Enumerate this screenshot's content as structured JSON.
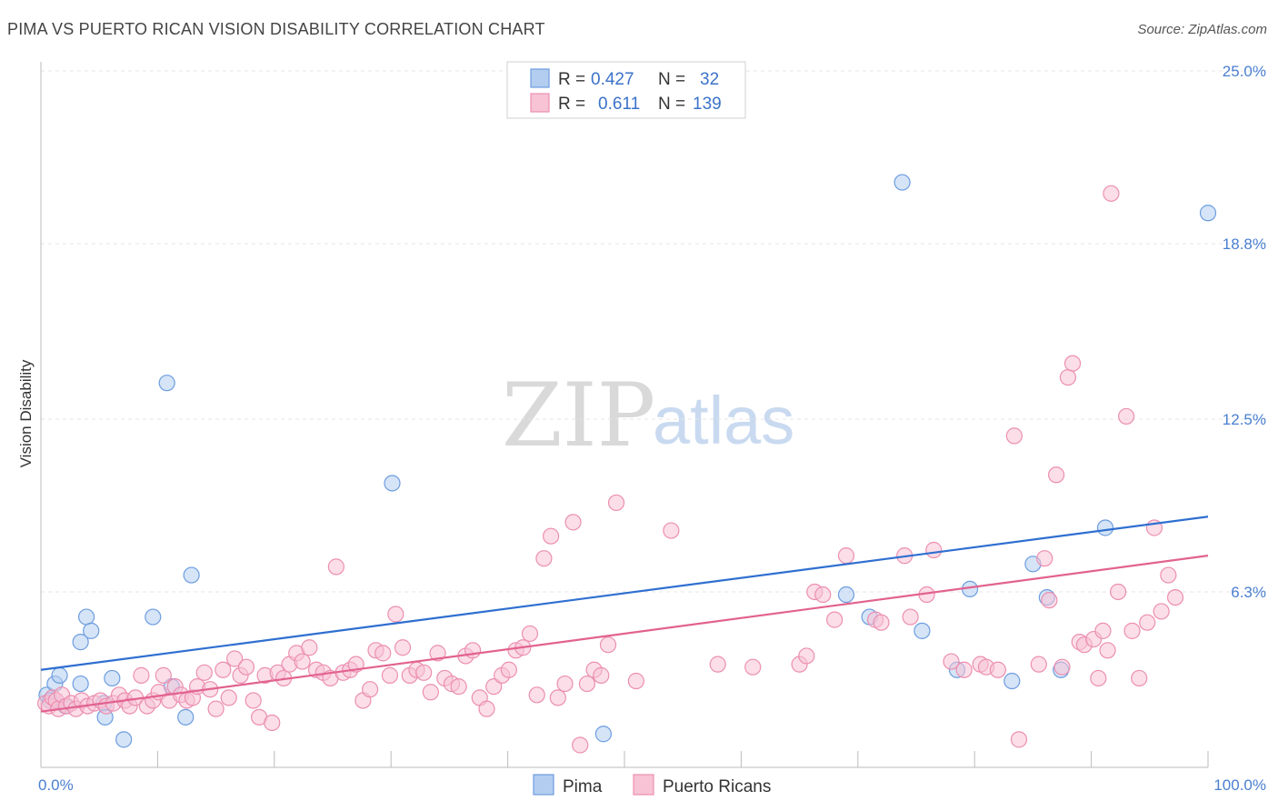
{
  "header": {
    "title": "PIMA VS PUERTO RICAN VISION DISABILITY CORRELATION CHART",
    "source": "Source: ZipAtlas.com"
  },
  "watermark": {
    "zip": "ZIP",
    "atlas": "atlas"
  },
  "chart_data": {
    "type": "scatter",
    "ylabel": "Vision Disability",
    "xlim": [
      0,
      100
    ],
    "ylim": [
      0,
      25
    ],
    "x_tick_labels": [
      {
        "value": 0,
        "label": "0.0%"
      },
      {
        "value": 100,
        "label": "100.0%"
      }
    ],
    "y_tick_labels": [
      {
        "value": 6.3,
        "label": "6.3%"
      },
      {
        "value": 12.5,
        "label": "12.5%"
      },
      {
        "value": 18.8,
        "label": "18.8%"
      },
      {
        "value": 25.0,
        "label": "25.0%"
      }
    ],
    "grid": "horizontal dashed",
    "legend": {
      "placement": "top-center",
      "entries": [
        {
          "r_label": "R =",
          "r_value": "0.427",
          "n_label": "N =",
          "n_value": "32"
        },
        {
          "r_label": "R =",
          "r_value": "0.611",
          "n_label": "N =",
          "n_value": "139"
        }
      ]
    },
    "series": [
      {
        "name": "Pima",
        "color": "#6d9de0",
        "fill": "#b3cdf0",
        "trend": {
          "x": [
            0,
            100
          ],
          "y": [
            3.5,
            9.0
          ],
          "color": "#2f6fd0"
        },
        "points": [
          [
            0.5,
            2.6
          ],
          [
            1.2,
            3.0
          ],
          [
            1.6,
            3.3
          ],
          [
            2.1,
            2.2
          ],
          [
            3.4,
            4.5
          ],
          [
            3.4,
            3.0
          ],
          [
            3.9,
            5.4
          ],
          [
            4.3,
            4.9
          ],
          [
            5.4,
            2.3
          ],
          [
            5.5,
            1.8
          ],
          [
            6.1,
            3.2
          ],
          [
            7.1,
            1.0
          ],
          [
            9.6,
            5.4
          ],
          [
            10.8,
            13.8
          ],
          [
            11.2,
            2.9
          ],
          [
            12.4,
            1.8
          ],
          [
            12.9,
            6.9
          ],
          [
            30.1,
            10.2
          ],
          [
            48.2,
            1.2
          ],
          [
            69.0,
            6.2
          ],
          [
            71.0,
            5.4
          ],
          [
            73.8,
            21.0
          ],
          [
            75.5,
            4.9
          ],
          [
            78.5,
            3.5
          ],
          [
            79.6,
            6.4
          ],
          [
            83.2,
            3.1
          ],
          [
            85.0,
            7.3
          ],
          [
            86.2,
            6.1
          ],
          [
            87.4,
            3.5
          ],
          [
            91.2,
            8.6
          ],
          [
            100.0,
            19.9
          ],
          [
            0.8,
            2.4
          ]
        ]
      },
      {
        "name": "Puerto Ricans",
        "color": "#ec8fb0",
        "fill": "#f7c3d5",
        "trend": {
          "x": [
            0,
            100
          ],
          "y": [
            2.0,
            7.6
          ],
          "color": "#e2628f"
        },
        "points": [
          [
            0.4,
            2.3
          ],
          [
            0.7,
            2.2
          ],
          [
            1.0,
            2.5
          ],
          [
            1.3,
            2.4
          ],
          [
            1.5,
            2.1
          ],
          [
            1.8,
            2.6
          ],
          [
            2.2,
            2.2
          ],
          [
            2.6,
            2.3
          ],
          [
            3.0,
            2.1
          ],
          [
            3.5,
            2.4
          ],
          [
            4.0,
            2.2
          ],
          [
            4.6,
            2.3
          ],
          [
            5.1,
            2.4
          ],
          [
            5.6,
            2.2
          ],
          [
            6.2,
            2.3
          ],
          [
            6.7,
            2.6
          ],
          [
            7.2,
            2.4
          ],
          [
            7.6,
            2.2
          ],
          [
            8.1,
            2.5
          ],
          [
            8.6,
            3.3
          ],
          [
            9.1,
            2.2
          ],
          [
            9.6,
            2.4
          ],
          [
            10.1,
            2.7
          ],
          [
            10.5,
            3.3
          ],
          [
            11.0,
            2.4
          ],
          [
            11.5,
            2.9
          ],
          [
            12.0,
            2.6
          ],
          [
            12.5,
            2.4
          ],
          [
            13.0,
            2.5
          ],
          [
            13.4,
            2.9
          ],
          [
            14.0,
            3.4
          ],
          [
            14.5,
            2.8
          ],
          [
            15.0,
            2.1
          ],
          [
            15.6,
            3.5
          ],
          [
            16.1,
            2.5
          ],
          [
            16.6,
            3.9
          ],
          [
            17.1,
            3.3
          ],
          [
            17.6,
            3.6
          ],
          [
            18.2,
            2.4
          ],
          [
            18.7,
            1.8
          ],
          [
            19.2,
            3.3
          ],
          [
            19.8,
            1.6
          ],
          [
            20.3,
            3.4
          ],
          [
            20.8,
            3.2
          ],
          [
            21.3,
            3.7
          ],
          [
            21.9,
            4.1
          ],
          [
            22.4,
            3.8
          ],
          [
            23.0,
            4.3
          ],
          [
            23.6,
            3.5
          ],
          [
            24.2,
            3.4
          ],
          [
            24.8,
            3.2
          ],
          [
            25.3,
            7.2
          ],
          [
            25.9,
            3.4
          ],
          [
            26.5,
            3.5
          ],
          [
            27.0,
            3.7
          ],
          [
            27.6,
            2.4
          ],
          [
            28.2,
            2.8
          ],
          [
            28.7,
            4.2
          ],
          [
            29.3,
            4.1
          ],
          [
            29.9,
            3.3
          ],
          [
            30.4,
            5.5
          ],
          [
            31.0,
            4.3
          ],
          [
            31.6,
            3.3
          ],
          [
            32.2,
            3.5
          ],
          [
            32.8,
            3.4
          ],
          [
            33.4,
            2.7
          ],
          [
            34.0,
            4.1
          ],
          [
            34.6,
            3.2
          ],
          [
            35.2,
            3.0
          ],
          [
            35.8,
            2.9
          ],
          [
            36.4,
            4.0
          ],
          [
            37.0,
            4.2
          ],
          [
            37.6,
            2.5
          ],
          [
            38.2,
            2.1
          ],
          [
            38.8,
            2.9
          ],
          [
            39.5,
            3.3
          ],
          [
            40.1,
            3.5
          ],
          [
            40.7,
            4.2
          ],
          [
            41.3,
            4.3
          ],
          [
            41.9,
            4.8
          ],
          [
            42.5,
            2.6
          ],
          [
            43.1,
            7.5
          ],
          [
            43.7,
            8.3
          ],
          [
            44.3,
            2.5
          ],
          [
            44.9,
            3.0
          ],
          [
            45.6,
            8.8
          ],
          [
            46.2,
            0.8
          ],
          [
            46.8,
            3.0
          ],
          [
            47.4,
            3.5
          ],
          [
            48.0,
            3.3
          ],
          [
            48.6,
            4.4
          ],
          [
            49.3,
            9.5
          ],
          [
            51.0,
            3.1
          ],
          [
            54.0,
            8.5
          ],
          [
            58.0,
            3.7
          ],
          [
            61.0,
            3.6
          ],
          [
            65.0,
            3.7
          ],
          [
            65.6,
            4.0
          ],
          [
            66.3,
            6.3
          ],
          [
            67.0,
            6.2
          ],
          [
            68.0,
            5.3
          ],
          [
            69.0,
            7.6
          ],
          [
            71.5,
            5.3
          ],
          [
            72.0,
            5.2
          ],
          [
            74.0,
            7.6
          ],
          [
            74.5,
            5.4
          ],
          [
            75.9,
            6.2
          ],
          [
            76.5,
            7.8
          ],
          [
            78.0,
            3.8
          ],
          [
            79.1,
            3.5
          ],
          [
            80.5,
            3.7
          ],
          [
            81.0,
            3.6
          ],
          [
            82.0,
            3.5
          ],
          [
            83.4,
            11.9
          ],
          [
            83.8,
            1.0
          ],
          [
            85.5,
            3.7
          ],
          [
            86.0,
            7.5
          ],
          [
            86.4,
            6.0
          ],
          [
            87.0,
            10.5
          ],
          [
            87.5,
            3.6
          ],
          [
            88.0,
            14.0
          ],
          [
            88.4,
            14.5
          ],
          [
            89.0,
            4.5
          ],
          [
            89.4,
            4.4
          ],
          [
            90.2,
            4.6
          ],
          [
            90.6,
            3.2
          ],
          [
            91.0,
            4.9
          ],
          [
            91.4,
            4.2
          ],
          [
            91.7,
            20.6
          ],
          [
            92.3,
            6.3
          ],
          [
            93.0,
            12.6
          ],
          [
            93.5,
            4.9
          ],
          [
            94.1,
            3.2
          ],
          [
            94.8,
            5.2
          ],
          [
            95.4,
            8.6
          ],
          [
            96.0,
            5.6
          ],
          [
            96.6,
            6.9
          ],
          [
            97.2,
            6.1
          ]
        ]
      }
    ]
  },
  "bottom_legend": [
    {
      "label": "Pima"
    },
    {
      "label": "Puerto Ricans"
    }
  ]
}
